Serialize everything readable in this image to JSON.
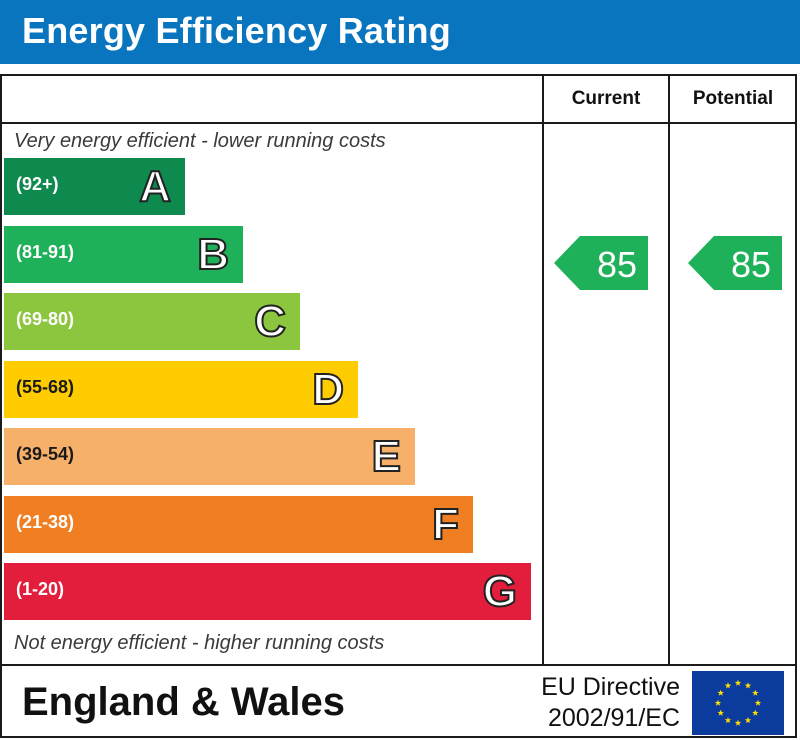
{
  "header": {
    "title": "Energy Efficiency Rating"
  },
  "columns": {
    "current": "Current",
    "potential": "Potential"
  },
  "notes": {
    "top": "Very energy efficient - lower running costs",
    "bottom": "Not energy efficient - higher running costs"
  },
  "chart_data": {
    "type": "bar",
    "title": "Energy Efficiency Rating",
    "bands": [
      {
        "letter": "A",
        "range": "(92+)",
        "min": 92,
        "max": 100,
        "color": "#0f8a4f"
      },
      {
        "letter": "B",
        "range": "(81-91)",
        "min": 81,
        "max": 91,
        "color": "#1eb159"
      },
      {
        "letter": "C",
        "range": "(69-80)",
        "min": 69,
        "max": 80,
        "color": "#8cc63f"
      },
      {
        "letter": "D",
        "range": "(55-68)",
        "min": 55,
        "max": 68,
        "color": "#ffcc00"
      },
      {
        "letter": "E",
        "range": "(39-54)",
        "min": 39,
        "max": 54,
        "color": "#f7b06a"
      },
      {
        "letter": "F",
        "range": "(21-38)",
        "min": 21,
        "max": 38,
        "color": "#f07f23"
      },
      {
        "letter": "G",
        "range": "(1-20)",
        "min": 1,
        "max": 20,
        "color": "#e31d3c"
      }
    ],
    "ratings": {
      "current": 85,
      "potential": 85
    },
    "rating_color": "#1eb159"
  },
  "footer": {
    "region": "England & Wales",
    "directive_line1": "EU Directive",
    "directive_line2": "2002/91/EC",
    "flag_color": "#0b3b9c",
    "star_color": "#ffde00"
  }
}
